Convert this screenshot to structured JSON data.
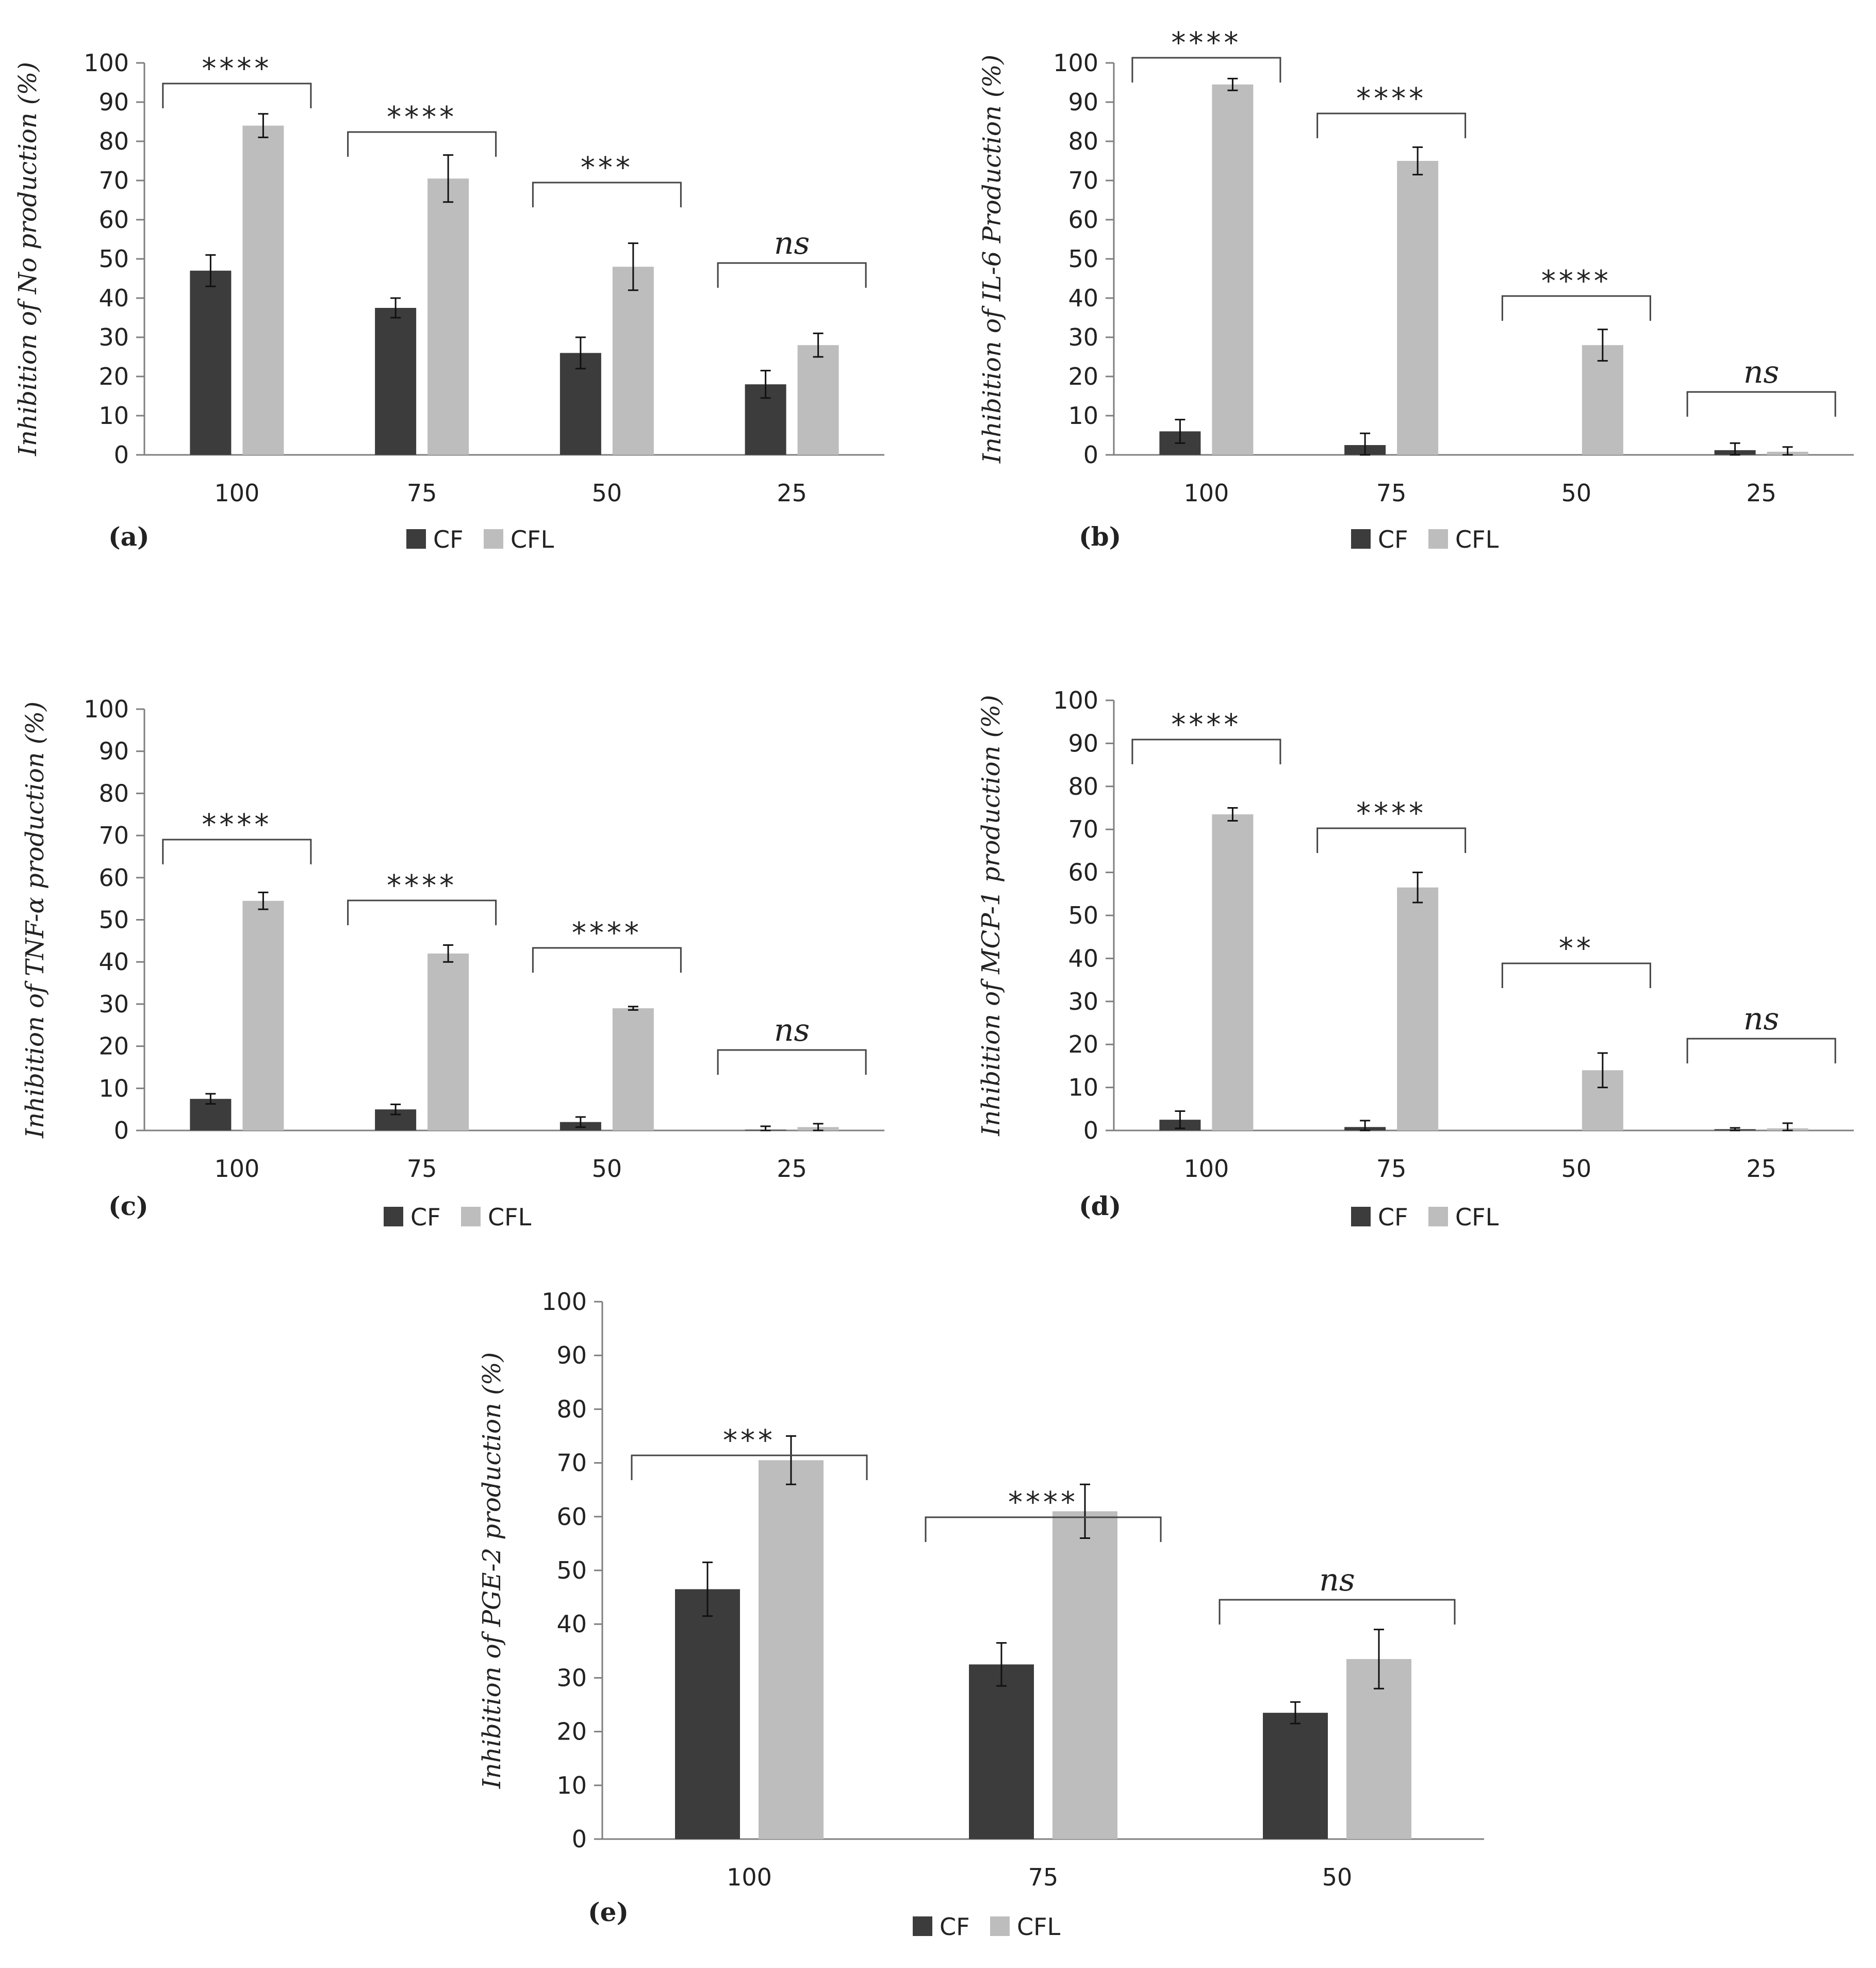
{
  "figure": {
    "legend_labels": [
      "CF",
      "CFL"
    ],
    "colors": {
      "CF": "#3c3c3c",
      "CFL": "#bdbdbd",
      "axis": "#7f7f7f",
      "text": "#222222"
    }
  },
  "chart_data": [
    {
      "type": "bar",
      "panel_label": "(a)",
      "ylabel": "Inhibition of No production (%)",
      "xlabel": "",
      "ylim": [
        0,
        100
      ],
      "yticks": [
        0,
        10,
        20,
        30,
        40,
        50,
        60,
        70,
        80,
        90,
        100
      ],
      "categories": [
        "100",
        "75",
        "50",
        "25"
      ],
      "series": [
        {
          "name": "CF",
          "values": [
            47,
            37.5,
            26,
            18
          ],
          "errors": [
            4,
            2.5,
            4,
            3.5
          ]
        },
        {
          "name": "CFL",
          "values": [
            84,
            70.5,
            48,
            28
          ],
          "errors": [
            3,
            6,
            6,
            3
          ]
        }
      ],
      "significance": [
        "****",
        "****",
        "***",
        "ns"
      ]
    },
    {
      "type": "bar",
      "panel_label": "(b)",
      "ylabel": "Inhibition of IL-6 Production (%)",
      "xlabel": "",
      "ylim": [
        0,
        100
      ],
      "yticks": [
        0,
        10,
        20,
        30,
        40,
        50,
        60,
        70,
        80,
        90,
        100
      ],
      "categories": [
        "100",
        "75",
        "50",
        "25"
      ],
      "series": [
        {
          "name": "CF",
          "values": [
            6,
            2.5,
            0,
            1.2
          ],
          "errors": [
            3,
            3,
            0,
            1.8
          ]
        },
        {
          "name": "CFL",
          "values": [
            94.5,
            75,
            28,
            0.8
          ],
          "errors": [
            1.5,
            3.5,
            4,
            1.2
          ]
        }
      ],
      "significance": [
        "****",
        "****",
        "****",
        "ns"
      ]
    },
    {
      "type": "bar",
      "panel_label": "(c)",
      "ylabel": "Inhibition of TNF-α production (%)",
      "xlabel": "",
      "ylim": [
        0,
        100
      ],
      "yticks": [
        0,
        10,
        20,
        30,
        40,
        50,
        60,
        70,
        80,
        90,
        100
      ],
      "categories": [
        "100",
        "75",
        "50",
        "25"
      ],
      "series": [
        {
          "name": "CF",
          "values": [
            7.5,
            5,
            2,
            0.2
          ],
          "errors": [
            1.2,
            1.2,
            1.2,
            0.8
          ]
        },
        {
          "name": "CFL",
          "values": [
            54.5,
            42,
            29,
            0.8
          ],
          "errors": [
            2,
            2,
            0.4,
            0.8
          ]
        }
      ],
      "significance": [
        "****",
        "****",
        "****",
        "ns"
      ]
    },
    {
      "type": "bar",
      "panel_label": "(d)",
      "ylabel": "Inhibition of MCP-1 production (%)",
      "xlabel": "",
      "ylim": [
        0,
        100
      ],
      "yticks": [
        0,
        10,
        20,
        30,
        40,
        50,
        60,
        70,
        80,
        90,
        100
      ],
      "categories": [
        "100",
        "75",
        "50",
        "25"
      ],
      "series": [
        {
          "name": "CF",
          "values": [
            2.5,
            0.8,
            0,
            0.3
          ],
          "errors": [
            2,
            1.5,
            0,
            0.3
          ]
        },
        {
          "name": "CFL",
          "values": [
            73.5,
            56.5,
            14,
            0.5
          ],
          "errors": [
            1.5,
            3.5,
            4,
            1.2
          ]
        }
      ],
      "significance": [
        "****",
        "****",
        "**",
        "ns"
      ]
    },
    {
      "type": "bar",
      "panel_label": "(e)",
      "ylabel": "Inhibition of PGE-2 production  (%)",
      "xlabel": "",
      "ylim": [
        0,
        100
      ],
      "yticks": [
        0,
        10,
        20,
        30,
        40,
        50,
        60,
        70,
        80,
        90,
        100
      ],
      "categories": [
        "100",
        "75",
        "50"
      ],
      "series": [
        {
          "name": "CF",
          "values": [
            46.5,
            32.5,
            23.5
          ],
          "errors": [
            5,
            4,
            2
          ]
        },
        {
          "name": "CFL",
          "values": [
            70.5,
            61,
            33.5
          ],
          "errors": [
            4.5,
            5,
            5.5
          ]
        }
      ],
      "significance": [
        "***",
        "****",
        "ns"
      ]
    }
  ]
}
